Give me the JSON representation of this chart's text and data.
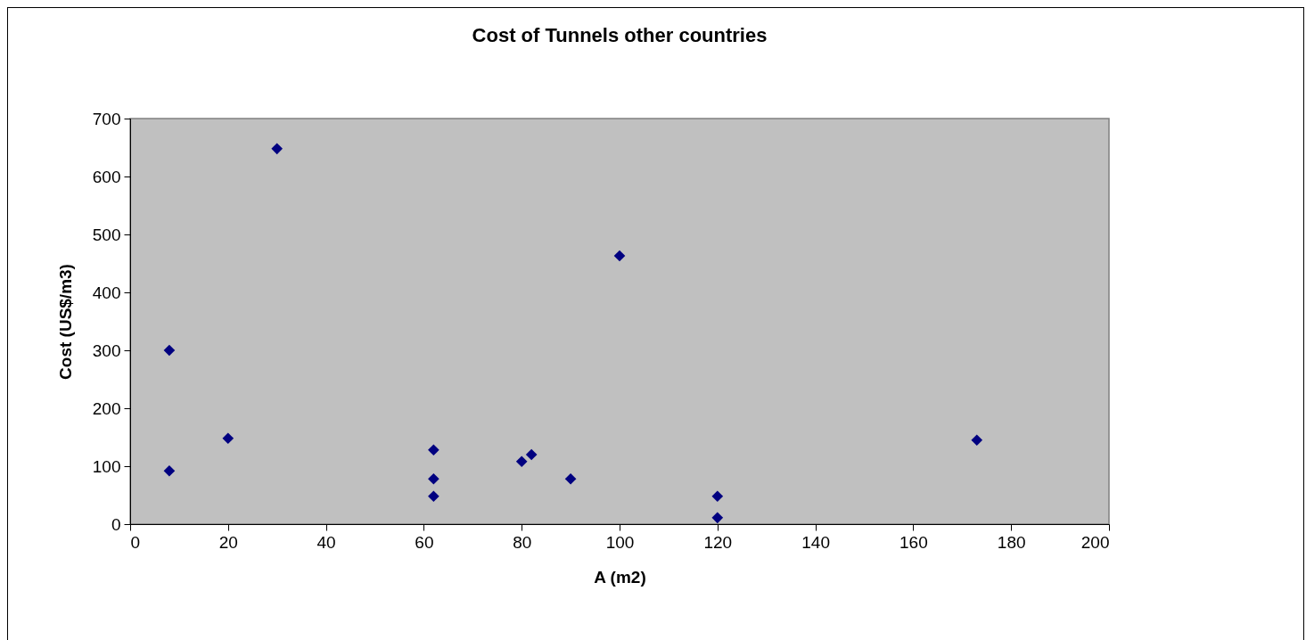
{
  "chart_data": {
    "type": "scatter",
    "title": "Cost of Tunnels other countries",
    "xlabel": "A (m2)",
    "ylabel": "Cost (US$/m3)",
    "x": [
      8,
      8,
      20,
      30,
      62,
      62,
      62,
      80,
      82,
      90,
      100,
      120,
      120,
      173
    ],
    "series": [
      {
        "color": "#000080",
        "values": [
          300,
          92,
          148,
          648,
          128,
          78,
          48,
          108,
          120,
          78,
          463,
          48,
          11,
          145
        ]
      }
    ],
    "xlim": [
      0,
      200
    ],
    "xticks": [
      0,
      20,
      40,
      60,
      80,
      100,
      120,
      140,
      160,
      180,
      200
    ],
    "ylim": [
      0,
      700
    ],
    "yticks": [
      0,
      100,
      200,
      300,
      400,
      500,
      600,
      700
    ],
    "grid": false,
    "marker": "diamond"
  }
}
